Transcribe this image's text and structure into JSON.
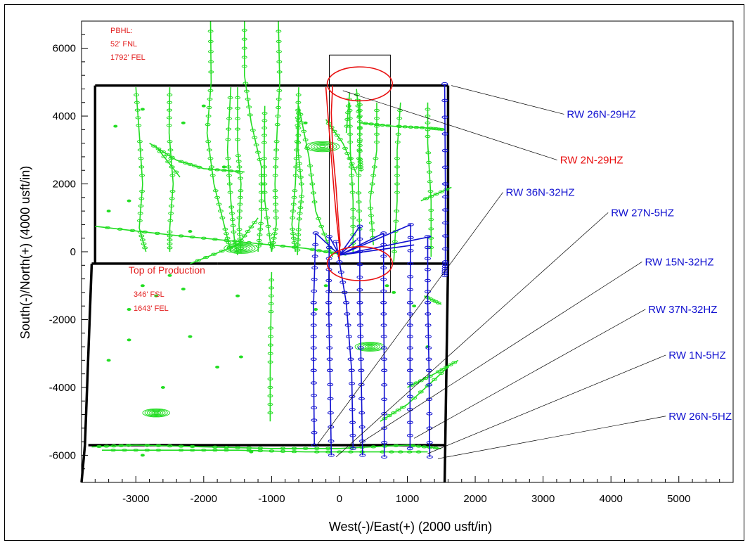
{
  "colors": {
    "offset": "#22dd22",
    "blue": "#1010d0",
    "red": "#e81010",
    "lease": "#000000"
  },
  "chart_data": {
    "type": "scatter",
    "xlabel": "West(-)/East(+) (2000 usft/in)",
    "ylabel": "South(-)/North(+) (4000 usft/in)",
    "xlim": [
      -3800,
      5800
    ],
    "ylim": [
      -6800,
      6800
    ],
    "x_ticks": [
      -3000,
      -2000,
      -1000,
      0,
      1000,
      2000,
      3000,
      4000,
      5000
    ],
    "y_ticks": [
      6000,
      4000,
      2000,
      0,
      -2000,
      -4000,
      -6000
    ],
    "x_tick_labels": [
      "-3000",
      "-2000",
      "-1000",
      "0",
      "1000",
      "2000",
      "3000",
      "4000",
      "5000"
    ],
    "y_tick_labels": [
      "6000",
      "4000",
      "2000",
      "0",
      "-2000",
      "-4000",
      "-6000"
    ],
    "annotations": {
      "pbhl": [
        "PBHL:",
        "52' FNL",
        "1792' FEL"
      ],
      "top_of_production": "Top of Production",
      "tops": [
        "346' FSL",
        "1643' FEL"
      ]
    },
    "labeled_wells": [
      {
        "name": "RW 26N-29HZ",
        "color": "#1010d0",
        "label_at": [
          3350,
          3950
        ],
        "anchor": [
          1650,
          4900
        ]
      },
      {
        "name": "RW 2N-29HZ",
        "color": "#e81010",
        "label_at": [
          3250,
          2600
        ],
        "anchor": [
          50,
          4750
        ]
      },
      {
        "name": "RW 36N-32HZ",
        "color": "#1010d0",
        "label_at": [
          2450,
          1650
        ],
        "anchor": [
          -350,
          -5750
        ]
      },
      {
        "name": "RW 27N-5HZ",
        "color": "#1010d0",
        "label_at": [
          4000,
          1050
        ],
        "anchor": [
          -50,
          -6050
        ]
      },
      {
        "name": "RW 15N-32HZ",
        "color": "#1010d0",
        "label_at": [
          4500,
          -400
        ],
        "anchor": [
          300,
          -5650
        ]
      },
      {
        "name": "RW 37N-32HZ",
        "color": "#1010d0",
        "label_at": [
          4550,
          -1800
        ],
        "anchor": [
          1100,
          -5500
        ]
      },
      {
        "name": "RW 1N-5HZ",
        "color": "#1010d0",
        "label_at": [
          4850,
          -3150
        ],
        "anchor": [
          1300,
          -5950
        ]
      },
      {
        "name": "RW 26N-5HZ",
        "color": "#1010d0",
        "label_at": [
          4850,
          -4950
        ],
        "anchor": [
          1450,
          -6100
        ]
      }
    ],
    "lease_lines": [
      [
        [
          -3600,
          4900
        ],
        [
          1600,
          4900
        ]
      ],
      [
        [
          -3600,
          4900
        ],
        [
          -3600,
          -350
        ]
      ],
      [
        [
          1600,
          4900
        ],
        [
          1600,
          -350
        ]
      ],
      [
        [
          -3650,
          -350
        ],
        [
          -1800,
          -350
        ]
      ],
      [
        [
          -1800,
          -350
        ],
        [
          1600,
          -350
        ]
      ],
      [
        [
          -3650,
          -350
        ],
        [
          -3750,
          -5700
        ]
      ],
      [
        [
          -3750,
          -5700
        ],
        [
          -3800,
          -6800
        ]
      ],
      [
        [
          -3700,
          -5700
        ],
        [
          1550,
          -5700
        ]
      ],
      [
        [
          1600,
          -350
        ],
        [
          1550,
          -6800
        ]
      ]
    ],
    "plan_box": [
      [
        -150,
        5800
      ],
      [
        750,
        5800
      ],
      [
        750,
        -1200
      ],
      [
        -150,
        -1200
      ],
      [
        -150,
        5800
      ]
    ],
    "red_ellipses": [
      {
        "cx": 300,
        "cy": 4950,
        "rx": 480,
        "ry": 500
      },
      {
        "cx": 300,
        "cy": -350,
        "rx": 480,
        "ry": 500
      }
    ],
    "red_paths": [
      [
        [
          -200,
          4850
        ],
        [
          -160,
          3800
        ],
        [
          -120,
          2800
        ],
        [
          -80,
          1800
        ],
        [
          -40,
          900
        ],
        [
          0,
          200
        ],
        [
          0,
          -250
        ]
      ],
      [
        [
          -100,
          4900
        ],
        [
          -120,
          4100
        ],
        [
          -100,
          3000
        ],
        [
          -50,
          1900
        ],
        [
          -20,
          1000
        ],
        [
          10,
          200
        ],
        [
          -20,
          -150
        ]
      ]
    ],
    "blue_paths": [
      [
        [
          -350,
          550
        ],
        [
          -380,
          -1500
        ],
        [
          -380,
          -3500
        ],
        [
          -370,
          -5700
        ]
      ],
      [
        [
          -150,
          450
        ],
        [
          -160,
          -1500
        ],
        [
          -140,
          -3500
        ],
        [
          -120,
          -6000
        ]
      ],
      [
        [
          -50,
          300
        ],
        [
          100,
          -1500
        ],
        [
          180,
          -3500
        ],
        [
          200,
          -5800
        ]
      ],
      [
        [
          300,
          750
        ],
        [
          300,
          -1500
        ],
        [
          320,
          -3500
        ],
        [
          340,
          -6000
        ]
      ],
      [
        [
          650,
          550
        ],
        [
          650,
          -1500
        ],
        [
          660,
          -3500
        ],
        [
          660,
          -6050
        ]
      ],
      [
        [
          1050,
          800
        ],
        [
          1040,
          -1500
        ],
        [
          1040,
          -3500
        ],
        [
          1040,
          -5800
        ]
      ],
      [
        [
          1300,
          450
        ],
        [
          1300,
          -1500
        ],
        [
          1320,
          -3500
        ],
        [
          1330,
          -6050
        ]
      ],
      [
        [
          1550,
          4950
        ],
        [
          1560,
          2000
        ],
        [
          1560,
          -300
        ],
        [
          1550,
          -700
        ]
      ]
    ],
    "blue_fan_to": [
      [
        -350,
        550
      ],
      [
        -150,
        450
      ],
      [
        300,
        750
      ],
      [
        650,
        550
      ],
      [
        1050,
        800
      ],
      [
        1350,
        450
      ],
      [
        250,
        350
      ],
      [
        1100,
        200
      ]
    ],
    "blue_fan_from": [
      0,
      -100
    ],
    "green_paths": [
      [
        [
          -1900,
          6800
        ],
        [
          -1890,
          5000
        ],
        [
          -1950,
          3500
        ],
        [
          -1850,
          2000
        ],
        [
          -1700,
          800
        ],
        [
          -1600,
          0
        ]
      ],
      [
        [
          -1400,
          6800
        ],
        [
          -1400,
          5200
        ],
        [
          -1300,
          3800
        ],
        [
          -1150,
          2500
        ],
        [
          -1150,
          1000
        ],
        [
          -1200,
          0
        ]
      ],
      [
        [
          -900,
          6800
        ],
        [
          -880,
          5000
        ],
        [
          -920,
          3500
        ],
        [
          -950,
          2000
        ],
        [
          -930,
          800
        ],
        [
          -1000,
          0
        ]
      ],
      [
        [
          -3000,
          4850
        ],
        [
          -2950,
          3500
        ],
        [
          -2900,
          2000
        ],
        [
          -2950,
          700
        ],
        [
          -2850,
          0
        ]
      ],
      [
        [
          -2500,
          4850
        ],
        [
          -2510,
          3500
        ],
        [
          -2450,
          2000
        ],
        [
          -2500,
          700
        ],
        [
          -2500,
          0
        ]
      ],
      [
        [
          -1500,
          4850
        ],
        [
          -1500,
          3000
        ],
        [
          -1450,
          2000
        ],
        [
          -1480,
          800
        ],
        [
          -1450,
          -50
        ]
      ],
      [
        [
          -600,
          4850
        ],
        [
          -620,
          3500
        ],
        [
          -650,
          2000
        ],
        [
          -700,
          800
        ],
        [
          -650,
          0
        ]
      ],
      [
        [
          -1600,
          4850
        ],
        [
          -1650,
          3000
        ],
        [
          -1600,
          1500
        ],
        [
          -1550,
          400
        ],
        [
          -1500,
          -100
        ]
      ],
      [
        [
          -600,
          4300
        ],
        [
          -610,
          3000
        ],
        [
          -550,
          1800
        ],
        [
          -600,
          800
        ],
        [
          -620,
          -100
        ]
      ],
      [
        [
          -1100,
          4300
        ],
        [
          -1110,
          3000
        ],
        [
          -1100,
          1500
        ],
        [
          -1000,
          0
        ]
      ],
      [
        [
          -600,
          4300
        ],
        [
          -450,
          2800
        ],
        [
          -350,
          1200
        ],
        [
          -100,
          -150
        ]
      ],
      [
        [
          150,
          4400
        ],
        [
          160,
          3000
        ],
        [
          200,
          1500
        ],
        [
          200,
          0
        ]
      ],
      [
        [
          300,
          4500
        ],
        [
          300,
          3500
        ],
        [
          280,
          2000
        ],
        [
          300,
          400
        ]
      ],
      [
        [
          550,
          4400
        ],
        [
          550,
          3000
        ],
        [
          450,
          1500
        ],
        [
          500,
          200
        ]
      ],
      [
        [
          900,
          4400
        ],
        [
          850,
          3000
        ],
        [
          850,
          1500
        ],
        [
          800,
          -300
        ]
      ],
      [
        [
          1300,
          4400
        ],
        [
          1300,
          3200
        ],
        [
          1350,
          1500
        ],
        [
          1350,
          -150
        ]
      ],
      [
        [
          -2800,
          3200
        ],
        [
          -2400,
          2700
        ],
        [
          -2000,
          2450
        ],
        [
          -1400,
          2350
        ]
      ],
      [
        [
          -2700,
          3100
        ],
        [
          -2350,
          2200
        ]
      ],
      [
        [
          -3600,
          750
        ],
        [
          -2500,
          500
        ],
        [
          -1500,
          300
        ],
        [
          -500,
          100
        ],
        [
          100,
          -100
        ]
      ],
      [
        [
          -2200,
          -350
        ],
        [
          -1500,
          200
        ],
        [
          -1200,
          1000
        ]
      ],
      [
        [
          -1000,
          -600
        ],
        [
          -1010,
          -2000
        ],
        [
          -1020,
          -3500
        ],
        [
          -1020,
          -5000
        ]
      ],
      [
        [
          1000,
          -4000
        ],
        [
          1400,
          -3600
        ],
        [
          1750,
          -3200
        ]
      ],
      [
        [
          600,
          -5000
        ],
        [
          1000,
          -4500
        ],
        [
          1600,
          -3400
        ]
      ],
      [
        [
          -3650,
          -5750
        ],
        [
          -3000,
          -5700
        ],
        [
          -2000,
          -5750
        ],
        [
          -1000,
          -5800
        ],
        [
          0,
          -5800
        ],
        [
          1000,
          -5700
        ],
        [
          1500,
          -5800
        ]
      ],
      [
        [
          -3500,
          -5850
        ],
        [
          -2500,
          -5850
        ],
        [
          -1500,
          -5850
        ],
        [
          -500,
          -5900
        ],
        [
          500,
          -5900
        ],
        [
          1300,
          -5900
        ]
      ],
      [
        [
          250,
          4800
        ],
        [
          300,
          3800
        ],
        [
          300,
          2800
        ],
        [
          320,
          2350
        ]
      ],
      [
        [
          150,
          4700
        ],
        [
          100,
          3500
        ]
      ],
      [
        [
          300,
          3800
        ],
        [
          800,
          3700
        ],
        [
          1300,
          3650
        ],
        [
          1550,
          3600
        ]
      ],
      [
        [
          -200,
          3900
        ],
        [
          50,
          3200
        ],
        [
          250,
          2300
        ]
      ],
      [
        [
          1200,
          1500
        ],
        [
          1650,
          1900
        ]
      ],
      [
        [
          1250,
          -1300
        ],
        [
          1500,
          -1550
        ]
      ]
    ],
    "green_dots": [
      [
        -2900,
        -1000
      ],
      [
        -2700,
        -1300
      ],
      [
        -2300,
        -1100
      ],
      [
        -1500,
        -1300
      ],
      [
        -3100,
        -1700
      ],
      [
        -2200,
        -2500
      ],
      [
        -1800,
        -3400
      ],
      [
        -1450,
        -3100
      ],
      [
        -3400,
        -3200
      ],
      [
        -2600,
        -4000
      ],
      [
        -2900,
        -6000
      ],
      [
        -1300,
        -5900
      ],
      [
        -200,
        -1000
      ],
      [
        -350,
        -1700
      ],
      [
        700,
        -1000
      ],
      [
        1100,
        -1600
      ],
      [
        -2300,
        3800
      ],
      [
        -2000,
        4300
      ],
      [
        -2900,
        4200
      ],
      [
        -3300,
        3700
      ],
      [
        -3100,
        1500
      ],
      [
        -3400,
        1200
      ],
      [
        -1700,
        2500
      ],
      [
        -2200,
        600
      ],
      [
        -2500,
        -700
      ],
      [
        1300,
        -2800
      ],
      [
        800,
        -1200
      ],
      [
        -3100,
        -2600
      ],
      [
        -500,
        3800
      ]
    ],
    "green_targets": [
      {
        "cx": -2700,
        "cy": -4750,
        "r": 200
      },
      {
        "cx": -1450,
        "cy": 100,
        "r": 250
      },
      {
        "cx": -250,
        "cy": 3100,
        "r": 250
      },
      {
        "cx": 450,
        "cy": -2800,
        "r": 220
      }
    ]
  }
}
